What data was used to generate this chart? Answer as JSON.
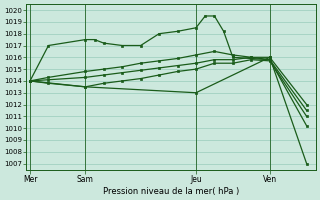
{
  "background_color": "#cce8dd",
  "grid_color": "#99ccbb",
  "line_color": "#1a5c1a",
  "marker": "s",
  "markersize": 1.8,
  "linewidth": 0.9,
  "xlabel_text": "Pression niveau de la mer( hPa )",
  "xtick_labels": [
    "Mer",
    "Sam",
    "Jeu",
    "Ven"
  ],
  "xtick_positions": [
    0,
    3,
    9,
    13
  ],
  "ylim": [
    1006.5,
    1020.5
  ],
  "yticks": [
    1007,
    1008,
    1009,
    1010,
    1011,
    1012,
    1013,
    1014,
    1015,
    1016,
    1017,
    1018,
    1019,
    1020
  ],
  "series": [
    {
      "x": [
        0,
        1,
        3,
        3.5,
        4,
        5,
        6,
        7,
        8,
        9,
        9.5,
        10,
        10.5,
        11,
        13,
        15
      ],
      "y": [
        1014.0,
        1017.0,
        1017.5,
        1017.5,
        1017.2,
        1017.0,
        1017.0,
        1018.0,
        1018.2,
        1018.5,
        1019.5,
        1019.5,
        1018.2,
        1016.0,
        1015.8,
        1010.2
      ]
    },
    {
      "x": [
        0,
        1,
        3,
        4,
        5,
        6,
        7,
        8,
        9,
        10,
        11,
        12,
        13,
        15
      ],
      "y": [
        1014.0,
        1014.3,
        1014.8,
        1015.0,
        1015.2,
        1015.5,
        1015.7,
        1015.9,
        1016.2,
        1016.5,
        1016.2,
        1016.0,
        1016.0,
        1012.0
      ]
    },
    {
      "x": [
        0,
        1,
        3,
        4,
        5,
        6,
        7,
        8,
        9,
        10,
        11,
        12,
        13,
        15
      ],
      "y": [
        1014.0,
        1014.1,
        1014.3,
        1014.5,
        1014.7,
        1014.9,
        1015.1,
        1015.3,
        1015.5,
        1015.8,
        1015.8,
        1016.0,
        1015.8,
        1011.5
      ]
    },
    {
      "x": [
        0,
        1,
        3,
        4,
        5,
        6,
        7,
        8,
        9,
        10,
        11,
        12,
        13,
        15
      ],
      "y": [
        1014.0,
        1013.8,
        1013.5,
        1013.8,
        1014.0,
        1014.2,
        1014.5,
        1014.8,
        1015.0,
        1015.5,
        1015.5,
        1015.8,
        1015.7,
        1011.0
      ]
    },
    {
      "x": [
        0,
        3,
        9,
        13,
        15
      ],
      "y": [
        1014.0,
        1013.5,
        1013.0,
        1016.0,
        1007.0
      ]
    }
  ],
  "vlines": [
    0,
    3,
    9,
    13
  ],
  "xlim": [
    -0.2,
    15.5
  ]
}
